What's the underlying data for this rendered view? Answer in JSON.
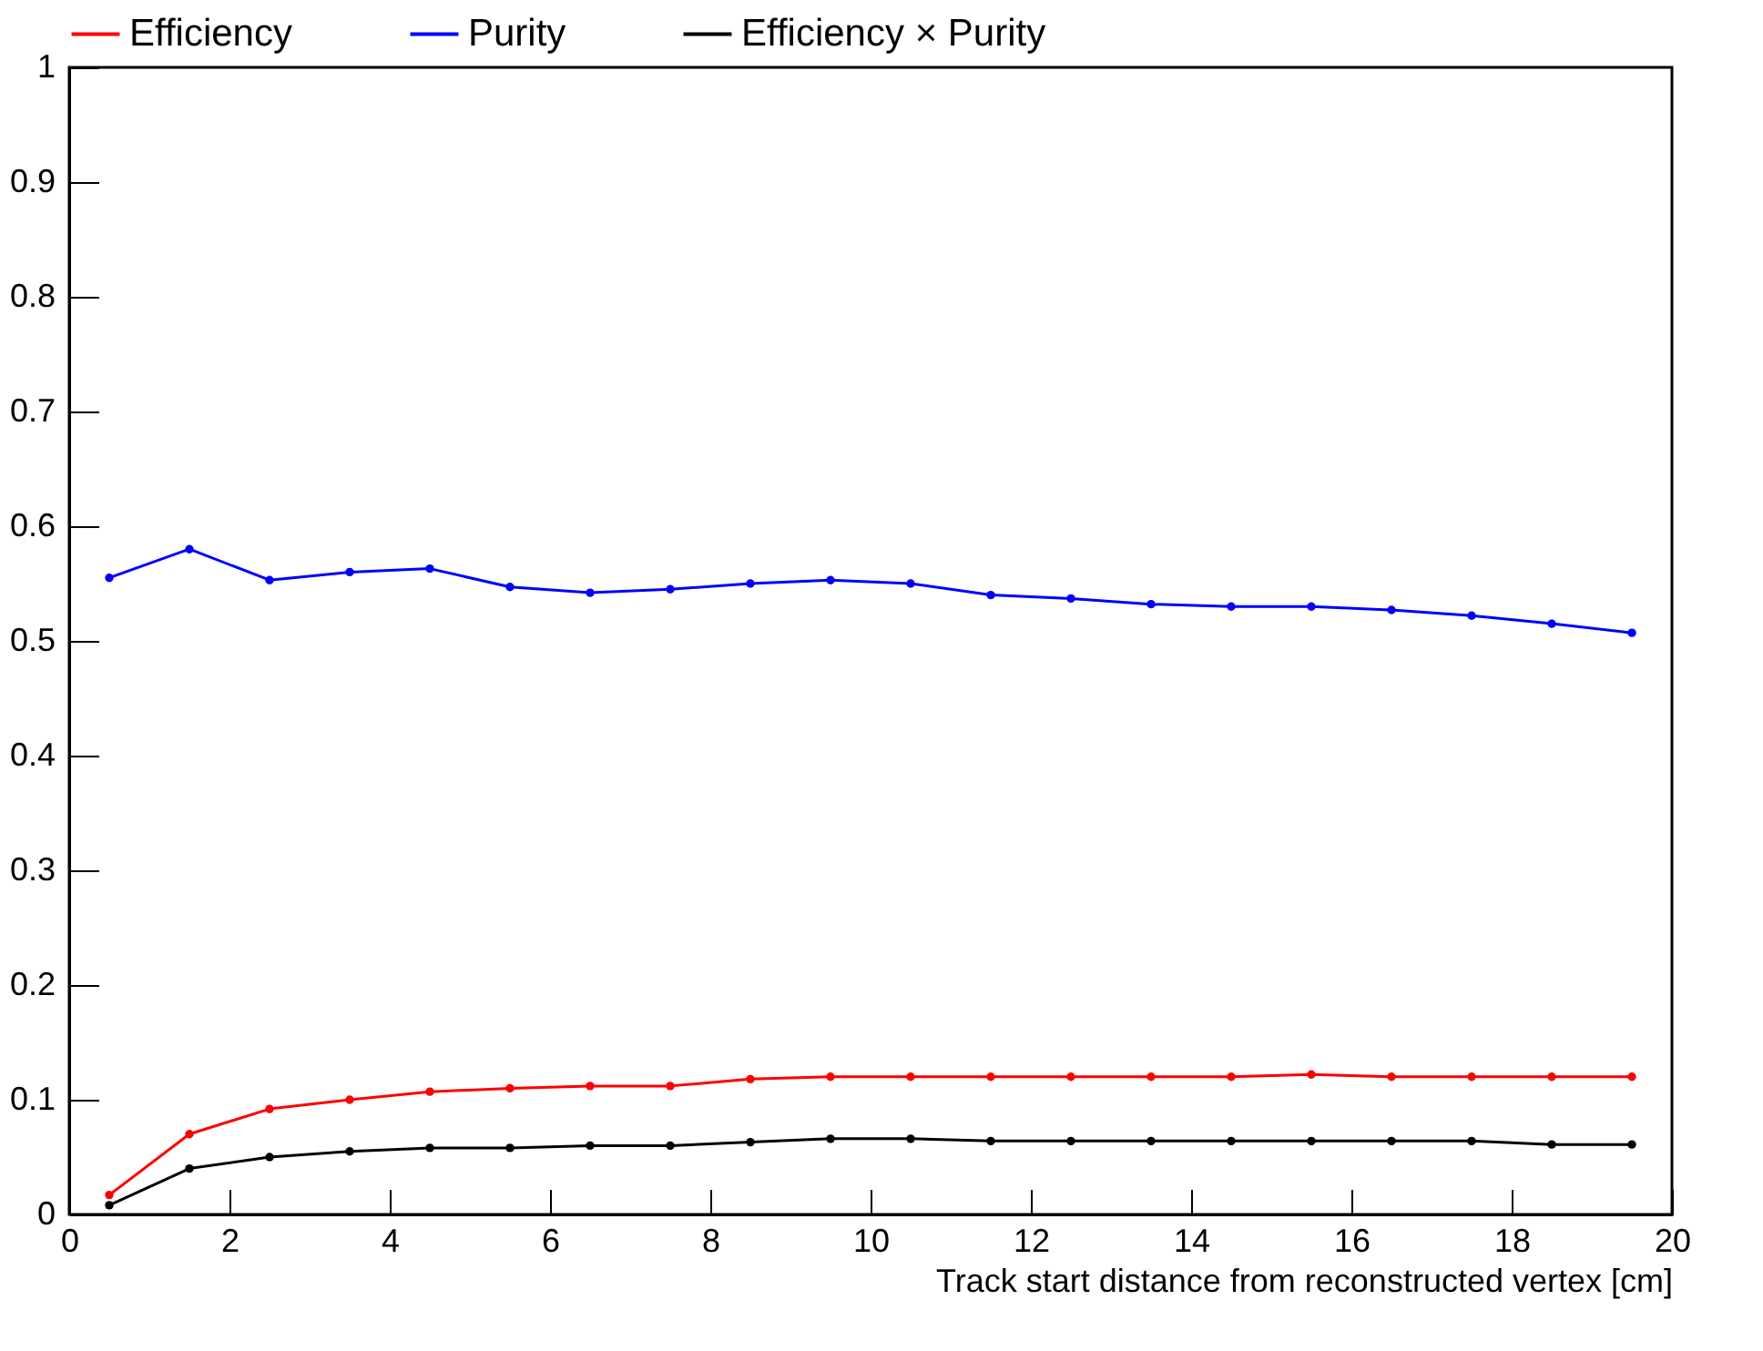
{
  "chart_data": {
    "type": "line",
    "xlabel": "Track start distance from reconstructed vertex [cm]",
    "x": [
      0.5,
      1.5,
      2.5,
      3.5,
      4.5,
      5.5,
      6.5,
      7.5,
      8.5,
      9.5,
      10.5,
      11.5,
      12.5,
      13.5,
      14.5,
      15.5,
      16.5,
      17.5,
      18.5,
      19.5
    ],
    "series": [
      {
        "name": "Efficiency",
        "color": "#ff0000",
        "values": [
          0.017,
          0.07,
          0.092,
          0.1,
          0.107,
          0.11,
          0.112,
          0.112,
          0.118,
          0.12,
          0.12,
          0.12,
          0.12,
          0.12,
          0.12,
          0.122,
          0.12,
          0.12,
          0.12,
          0.12
        ]
      },
      {
        "name": "Purity",
        "color": "#0000ff",
        "values": [
          0.555,
          0.58,
          0.553,
          0.56,
          0.563,
          0.547,
          0.542,
          0.545,
          0.55,
          0.553,
          0.55,
          0.54,
          0.537,
          0.532,
          0.53,
          0.53,
          0.527,
          0.522,
          0.515,
          0.507
        ]
      },
      {
        "name": "Efficiency × Purity",
        "color": "#000000",
        "values": [
          0.008,
          0.04,
          0.05,
          0.055,
          0.058,
          0.058,
          0.06,
          0.06,
          0.063,
          0.066,
          0.066,
          0.064,
          0.064,
          0.064,
          0.064,
          0.064,
          0.064,
          0.064,
          0.061,
          0.061
        ]
      }
    ],
    "xlim": [
      0,
      20
    ],
    "xticks": [
      0,
      2,
      4,
      6,
      8,
      10,
      12,
      14,
      16,
      18,
      20
    ],
    "ylim": [
      0,
      1
    ],
    "yticks": [
      0,
      0.1,
      0.2,
      0.3,
      0.4,
      0.5,
      0.6,
      0.7,
      0.8,
      0.9,
      1
    ],
    "grid": false,
    "legend": "top",
    "marker": "circle",
    "line_style": "solid"
  }
}
